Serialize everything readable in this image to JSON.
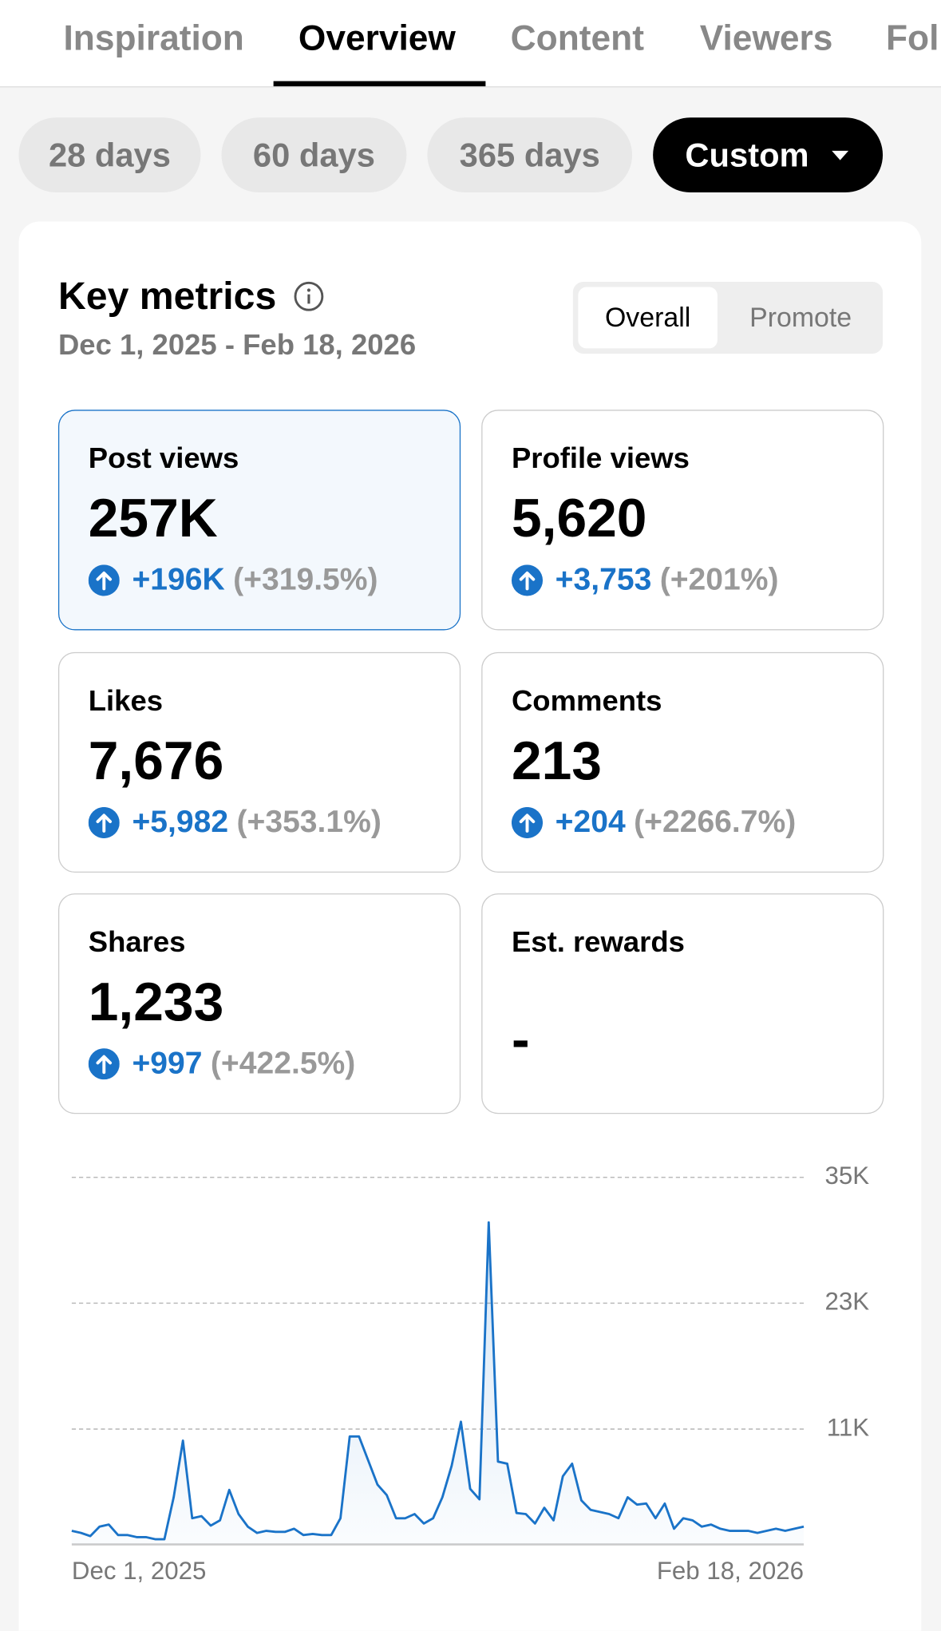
{
  "tabs": [
    "Inspiration",
    "Overview",
    "Content",
    "Viewers",
    "Followers"
  ],
  "active_tab": 1,
  "periods": [
    "28 days",
    "60 days",
    "365 days",
    "Custom"
  ],
  "active_period": 3,
  "card": {
    "title": "Key metrics",
    "date_range": "Dec 1, 2025 - Feb 18, 2026",
    "toggle": [
      "Overall",
      "Promote"
    ]
  },
  "metrics": [
    {
      "label": "Post views",
      "value": "257K",
      "change": "+196K",
      "percent": "(+319.5%)"
    },
    {
      "label": "Profile views",
      "value": "5,620",
      "change": "+3,753",
      "percent": "(+201%)"
    },
    {
      "label": "Likes",
      "value": "7,676",
      "change": "+5,982",
      "percent": "(+353.1%)"
    },
    {
      "label": "Comments",
      "value": "213",
      "change": "+204",
      "percent": "(+2266.7%)"
    },
    {
      "label": "Shares",
      "value": "1,233",
      "change": "+997",
      "percent": "(+422.5%)"
    },
    {
      "label": "Est. rewards",
      "value": "-"
    }
  ],
  "chart_data": {
    "type": "line",
    "color": "#1a73c8",
    "grid": true,
    "y_axis_side": "right",
    "categories": [
      "Dec 1, 2025",
      null,
      null,
      null,
      null,
      null,
      null,
      null,
      null,
      null,
      null,
      null,
      null,
      null,
      null,
      null,
      null,
      null,
      null,
      null,
      null,
      null,
      null,
      null,
      null,
      null,
      null,
      null,
      null,
      null,
      null,
      null,
      null,
      null,
      null,
      null,
      null,
      null,
      null,
      null,
      null,
      null,
      null,
      null,
      null,
      null,
      null,
      null,
      null,
      null,
      null,
      null,
      null,
      null,
      null,
      null,
      null,
      null,
      null,
      null,
      null,
      null,
      null,
      null,
      null,
      null,
      null,
      null,
      null,
      null,
      null,
      null,
      null,
      null,
      null,
      null,
      null,
      null,
      null,
      "Feb 18, 2026"
    ],
    "values": [
      1300,
      1100,
      800,
      1700,
      1900,
      900,
      900,
      700,
      700,
      500,
      500,
      4500,
      9900,
      2500,
      2700,
      1800,
      2300,
      5200,
      2900,
      1700,
      1100,
      1300,
      1200,
      1200,
      1500,
      900,
      1000,
      900,
      900,
      2500,
      10300,
      10300,
      8000,
      5700,
      4700,
      2500,
      2500,
      2900,
      2000,
      2500,
      4500,
      7500,
      11700,
      5300,
      4300,
      30700,
      7900,
      7700,
      3000,
      2900,
      2000,
      3500,
      2300,
      6500,
      7700,
      4200,
      3300,
      3100,
      2900,
      2500,
      4500,
      3800,
      3900,
      2500,
      3900,
      1500,
      2500,
      2300,
      1700,
      1900,
      1500,
      1300,
      1300,
      1300,
      1100,
      1300,
      1500,
      1300,
      1500,
      1700
    ],
    "ylim": [
      0,
      35000
    ],
    "yticks": [
      {
        "value": 11000,
        "label": "11K"
      },
      {
        "value": 23000,
        "label": "23K"
      },
      {
        "value": 35000,
        "label": "35K"
      }
    ]
  }
}
